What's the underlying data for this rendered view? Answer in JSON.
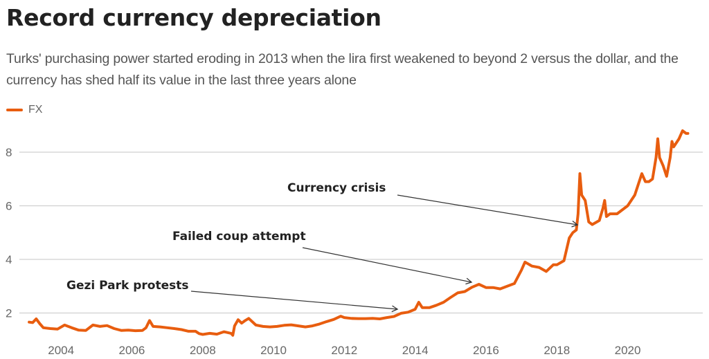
{
  "chart_data": {
    "type": "line",
    "title": "Record currency depreciation",
    "subtitle": "Turks' purchasing power started eroding in 2013 when the lira first weakened to beyond 2 versus the dollar, and the currency has shed half its value in the last three years alone",
    "xlabel": "",
    "ylabel": "",
    "xlim": [
      2003,
      2021.8
    ],
    "ylim": [
      1.1,
      9.2
    ],
    "grid": true,
    "legend": "top-left",
    "x_ticks": [
      2004,
      2006,
      2008,
      2010,
      2012,
      2014,
      2016,
      2018,
      2020
    ],
    "y_ticks": [
      2,
      4,
      6,
      8
    ],
    "series": [
      {
        "name": "FX",
        "color": "#e85d0f",
        "x": [
          2003.1,
          2003.2,
          2003.3,
          2003.4,
          2003.5,
          2003.7,
          2003.9,
          2004.1,
          2004.3,
          2004.5,
          2004.7,
          2004.9,
          2005.1,
          2005.3,
          2005.5,
          2005.7,
          2005.9,
          2006.1,
          2006.3,
          2006.4,
          2006.5,
          2006.6,
          2006.8,
          2007.0,
          2007.2,
          2007.4,
          2007.6,
          2007.8,
          2007.9,
          2008.0,
          2008.2,
          2008.4,
          2008.6,
          2008.8,
          2008.85,
          2008.9,
          2009.0,
          2009.1,
          2009.2,
          2009.3,
          2009.5,
          2009.7,
          2009.9,
          2010.1,
          2010.3,
          2010.5,
          2010.7,
          2010.9,
          2011.1,
          2011.3,
          2011.5,
          2011.7,
          2011.9,
          2012.0,
          2012.2,
          2012.4,
          2012.6,
          2012.8,
          2013.0,
          2013.2,
          2013.4,
          2013.6,
          2013.8,
          2014.0,
          2014.1,
          2014.2,
          2014.4,
          2014.6,
          2014.8,
          2015.0,
          2015.2,
          2015.4,
          2015.6,
          2015.8,
          2016.0,
          2016.2,
          2016.4,
          2016.6,
          2016.8,
          2017.0,
          2017.1,
          2017.3,
          2017.5,
          2017.7,
          2017.9,
          2018.0,
          2018.2,
          2018.35,
          2018.45,
          2018.55,
          2018.6,
          2018.65,
          2018.7,
          2018.8,
          2018.9,
          2019.0,
          2019.2,
          2019.3,
          2019.35,
          2019.4,
          2019.5,
          2019.7,
          2019.9,
          2020.0,
          2020.2,
          2020.4,
          2020.5,
          2020.6,
          2020.7,
          2020.8,
          2020.85,
          2020.9,
          2021.0,
          2021.1,
          2021.2,
          2021.25,
          2021.3,
          2021.45,
          2021.55,
          2021.65,
          2021.7
        ],
        "values": [
          1.66,
          1.64,
          1.78,
          1.6,
          1.45,
          1.42,
          1.4,
          1.55,
          1.45,
          1.36,
          1.35,
          1.55,
          1.5,
          1.53,
          1.42,
          1.35,
          1.36,
          1.34,
          1.35,
          1.45,
          1.72,
          1.5,
          1.48,
          1.45,
          1.42,
          1.38,
          1.32,
          1.32,
          1.23,
          1.2,
          1.24,
          1.21,
          1.3,
          1.24,
          1.17,
          1.52,
          1.75,
          1.62,
          1.72,
          1.8,
          1.55,
          1.5,
          1.48,
          1.5,
          1.54,
          1.56,
          1.52,
          1.48,
          1.52,
          1.59,
          1.68,
          1.76,
          1.88,
          1.83,
          1.8,
          1.79,
          1.79,
          1.8,
          1.78,
          1.83,
          1.87,
          1.99,
          2.03,
          2.14,
          2.4,
          2.2,
          2.2,
          2.29,
          2.4,
          2.58,
          2.75,
          2.8,
          2.96,
          3.07,
          2.95,
          2.95,
          2.9,
          3.0,
          3.1,
          3.6,
          3.9,
          3.75,
          3.7,
          3.55,
          3.8,
          3.8,
          3.95,
          4.8,
          5.0,
          5.1,
          5.7,
          7.2,
          6.4,
          6.2,
          5.4,
          5.3,
          5.45,
          5.9,
          6.2,
          5.6,
          5.7,
          5.7,
          5.9,
          6.0,
          6.4,
          7.2,
          6.9,
          6.9,
          7.0,
          7.8,
          8.5,
          7.8,
          7.5,
          7.1,
          7.8,
          8.4,
          8.2,
          8.5,
          8.8,
          8.7,
          8.7
        ]
      }
    ],
    "annotations": [
      {
        "text": "Gezi Park protests",
        "target_x": 2013.4,
        "target_y": 2.1
      },
      {
        "text": "Failed coup attempt",
        "target_x": 2015.5,
        "target_y": 3.2
      },
      {
        "text": "Currency crisis",
        "target_x": 2018.4,
        "target_y": 5.3
      }
    ]
  }
}
